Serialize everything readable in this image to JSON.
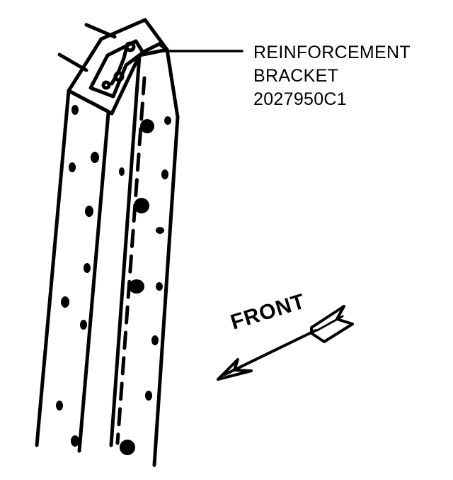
{
  "callout": {
    "line1": "REINFORCEMENT",
    "line2": "BRACKET",
    "line3": "2027950C1"
  },
  "direction": {
    "label": "FRONT"
  },
  "colors": {
    "ink": "#000000",
    "paper": "#ffffff"
  }
}
